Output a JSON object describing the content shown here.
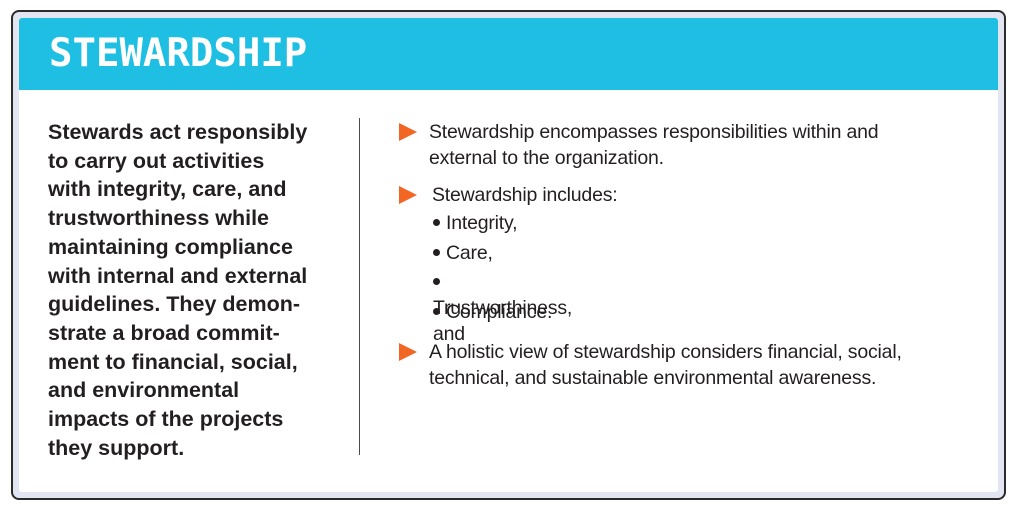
{
  "header": {
    "title": "STEWARDSHIP"
  },
  "left": {
    "description": "Stewards act responsibly to carry out activities with integrity, care, and trustworthiness while maintaining compliance with internal and external guidelines. They demon-strate a broad commit-ment to financial, social, and environmental impacts of the projects they support.",
    "lines": [
      "Stewards act responsibly",
      "to carry out activities",
      "with integrity, care, and",
      "trustworthiness while",
      "maintaining compliance",
      "with internal and external",
      "guidelines. They demon-",
      "strate a broad commit-",
      "ment to financial, social,",
      "and environmental",
      "impacts of the projects",
      "they support."
    ]
  },
  "right": {
    "items": [
      {
        "text_lines": [
          "Stewardship encompasses responsibilities within and",
          "external to the organization."
        ]
      },
      {
        "text_lines": [
          "Stewardship includes:"
        ],
        "bullets": [
          "Integrity,",
          "Care,",
          "Trustworthiness, and",
          "Compliance."
        ]
      },
      {
        "text_lines": [
          "A holistic view of stewardship considers financial, social,",
          "technical, and sustainable environmental awareness."
        ]
      }
    ]
  },
  "colors": {
    "header_bg": "#1ebfe3",
    "arrow": "#f26522",
    "frame_bg": "#e3e6f2",
    "text": "#231f20"
  },
  "icons": {
    "item_marker": "orange-triangle-arrow-icon",
    "bullet": "bullet-dot-icon"
  }
}
